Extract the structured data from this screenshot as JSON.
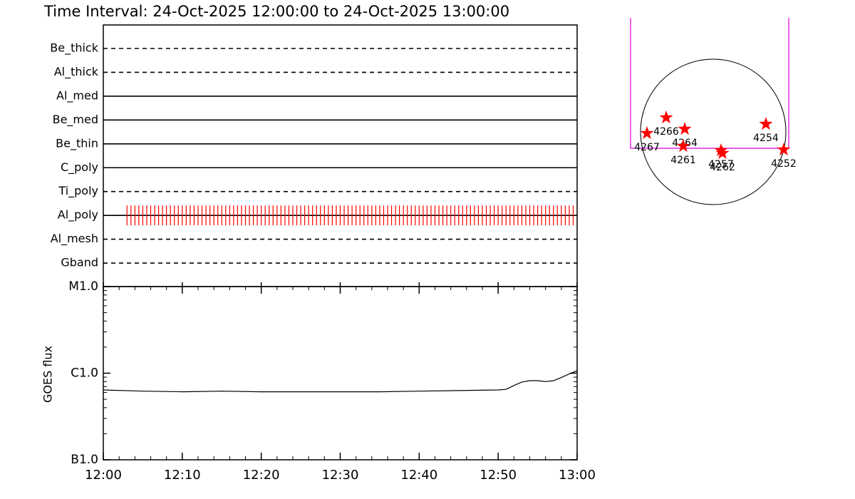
{
  "title": "Time Interval: 24-Oct-2025 12:00:00 to 24-Oct-2025 13:00:00",
  "chart_data": [
    {
      "type": "timeline",
      "categories": [
        "Be_thick",
        "Al_thick",
        "Al_med",
        "Be_med",
        "Be_thin",
        "C_poly",
        "Ti_poly",
        "Al_poly",
        "Al_mesh",
        "Gband"
      ],
      "line_styles": [
        "dashed",
        "dashed",
        "solid",
        "solid",
        "solid",
        "solid",
        "dashed",
        "solid",
        "dashed",
        "dashed"
      ],
      "color": "#ff0000",
      "events": [
        [],
        [],
        [],
        [],
        [],
        [],
        [],
        [
          3,
          3.5,
          4,
          4.5,
          5,
          5.5,
          6,
          6.5,
          7,
          7.5,
          8,
          8.5,
          9,
          9.5,
          10,
          10.5,
          11,
          11.5,
          12,
          12.5,
          13,
          13.5,
          14,
          14.5,
          15,
          15.5,
          16,
          16.5,
          17,
          17.5,
          18,
          18.5,
          19,
          19.5,
          20,
          20.5,
          21,
          21.5,
          22,
          22.5,
          23,
          23.5,
          24,
          24.5,
          25,
          25.5,
          26,
          26.5,
          27,
          27.5,
          28,
          28.5,
          29,
          29.5,
          30,
          30.5,
          31,
          31.5,
          32,
          32.5,
          33,
          33.5,
          34,
          34.5,
          35,
          35.5,
          36,
          36.5,
          37,
          37.5,
          38,
          38.5,
          39,
          39.5,
          40,
          40.5,
          41,
          41.5,
          42,
          42.5,
          43,
          43.5,
          44,
          44.5,
          45,
          45.5,
          46,
          46.5,
          47,
          47.5,
          48,
          48.5,
          49,
          49.5,
          50,
          50.5,
          51,
          51.5,
          52,
          52.5,
          53,
          53.5,
          54,
          54.5,
          55,
          55.5,
          56,
          56.5,
          57,
          57.5,
          58,
          58.5,
          59,
          59.5
        ],
        [],
        []
      ]
    },
    {
      "type": "line",
      "y_label": "GOES flux",
      "color": "#000000",
      "log_y": true,
      "x": [
        0,
        5,
        10,
        15,
        20,
        25,
        30,
        35,
        40,
        45,
        50,
        51,
        52,
        53,
        54,
        55,
        56,
        57,
        58,
        59,
        60
      ],
      "values": [
        6.4e-07,
        6.2e-07,
        6.1e-07,
        6.2e-07,
        6.1e-07,
        6.1e-07,
        6.1e-07,
        6.1e-07,
        6.2e-07,
        6.3e-07,
        6.4e-07,
        6.5e-07,
        7.2e-07,
        7.9e-07,
        8.2e-07,
        8.2e-07,
        8e-07,
        8.2e-07,
        8.9e-07,
        9.8e-07,
        1.07e-06
      ],
      "xlim": [
        0,
        60
      ],
      "xticks": [
        {
          "value": 0,
          "label": "12:00"
        },
        {
          "value": 10,
          "label": "12:10"
        },
        {
          "value": 20,
          "label": "12:20"
        },
        {
          "value": 30,
          "label": "12:30"
        },
        {
          "value": 40,
          "label": "12:40"
        },
        {
          "value": 50,
          "label": "12:50"
        },
        {
          "value": 60,
          "label": "13:00"
        }
      ],
      "ylim": [
        1e-07,
        1e-05
      ],
      "yticks": [
        {
          "value": 1e-07,
          "label": "B1.0"
        },
        {
          "value": 1e-06,
          "label": "C1.0"
        },
        {
          "value": 1e-05,
          "label": "M1.0"
        }
      ]
    },
    {
      "type": "scatter",
      "color": "#ff0000",
      "labels": [
        "4267",
        "4266",
        "4264",
        "4261",
        "4257",
        "4262",
        "4254",
        "4252"
      ],
      "x": [
        -875,
        -621,
        -376,
        -395,
        103,
        122,
        696,
        931
      ],
      "y": [
        -19,
        188,
        38,
        -188,
        -245,
        -282,
        103,
        -235
      ]
    }
  ]
}
